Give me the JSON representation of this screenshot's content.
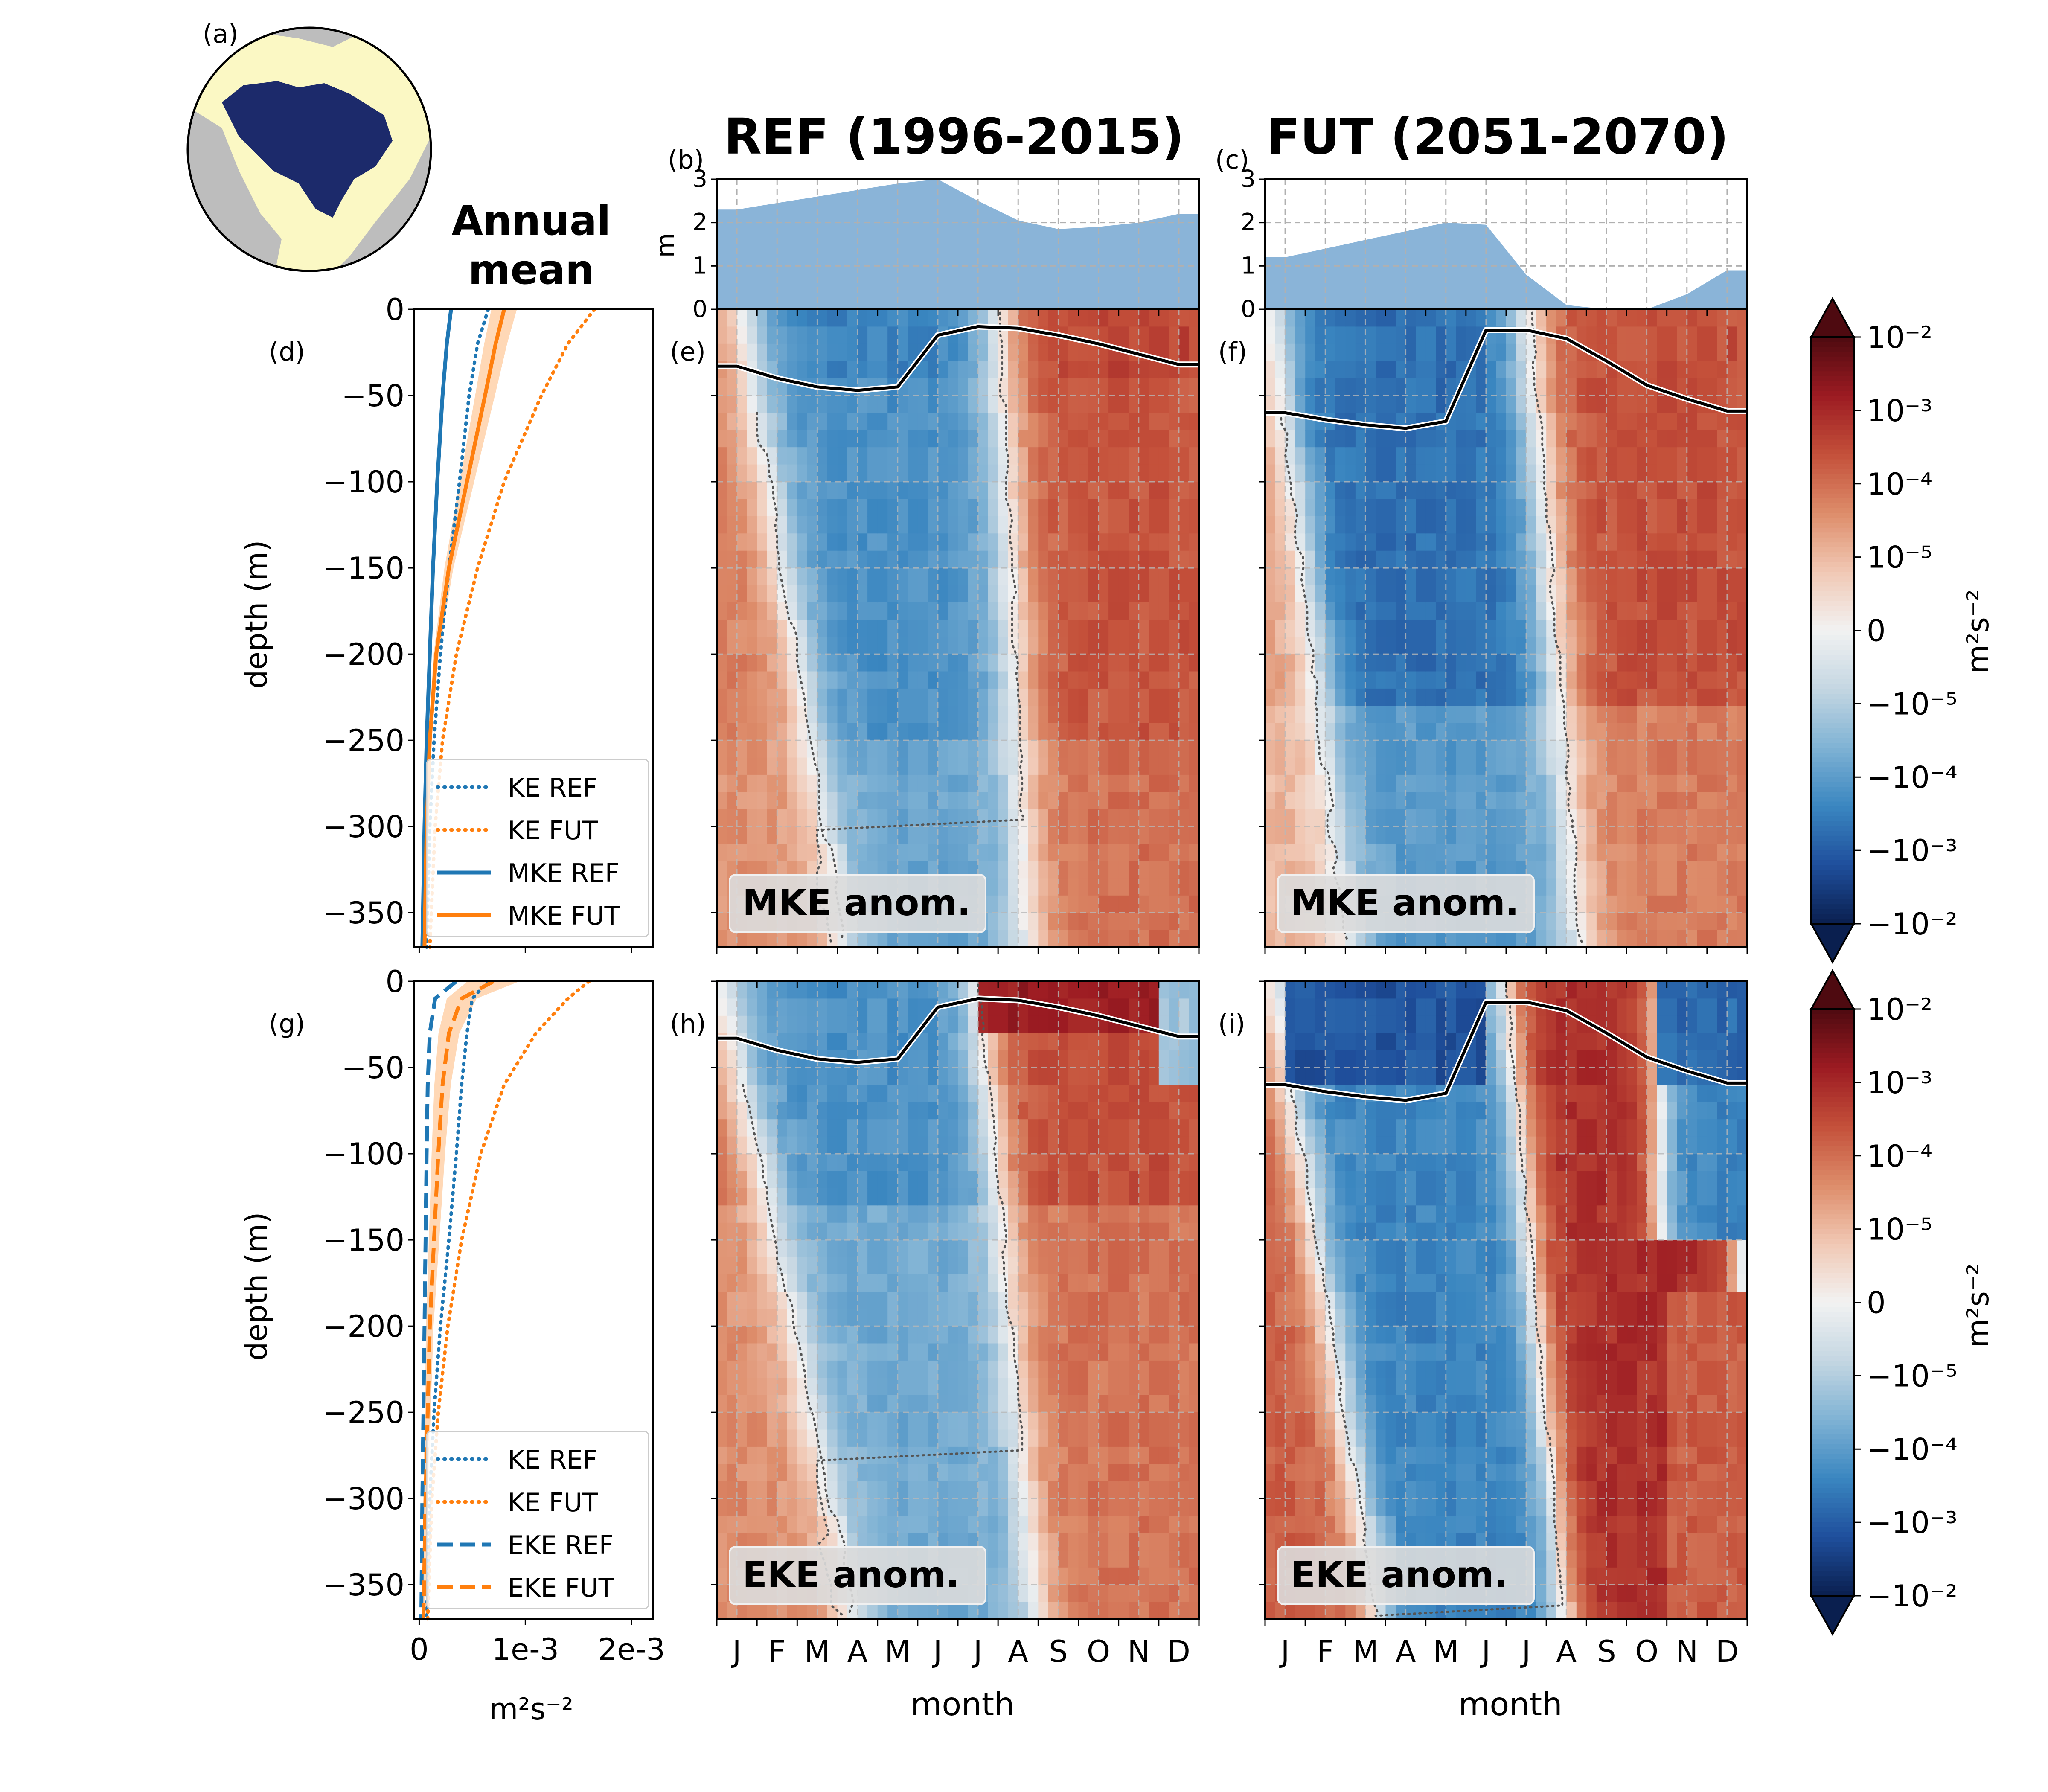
{
  "colors": {
    "blue": "#1f77b4",
    "orange": "#ff7f0e",
    "sea_ice": "#8ab4d8",
    "region": "#1c2a6b",
    "land": "#bdbdbd",
    "ocean_map": "#fbf8c4",
    "colormap": [
      "#0a1f4f",
      "#1f4f9c",
      "#3a86c0",
      "#7fb2d4",
      "#c4d6e2",
      "#f2f2f2",
      "#f1c8b4",
      "#dd8c6a",
      "#c4503a",
      "#9c1b22",
      "#4e0a10"
    ]
  },
  "texts": {
    "panel_a": "(a)",
    "panel_b": "(b)",
    "panel_c": "(c)",
    "panel_d": "(d)",
    "panel_e": "(e)",
    "panel_f": "(f)",
    "panel_g": "(g)",
    "panel_h": "(h)",
    "panel_i": "(i)",
    "title_ref": "REF (1996-2015)",
    "title_fut": "FUT (2051-2070)",
    "annual_mean_1": "Annual",
    "annual_mean_2": "mean",
    "ice_ylabel": "m",
    "depth_label": "depth (m)",
    "month_label": "month",
    "units_x": "m²s⁻²",
    "cbar_label": "m²s⁻²",
    "mke_anom": "MKE anom.",
    "eke_anom": "EKE anom."
  },
  "chart_data": [
    {
      "type": "area",
      "panel": "(b)",
      "title": "REF (1996-2015)",
      "ylabel": "m",
      "x": [
        "J",
        "F",
        "M",
        "A",
        "M",
        "J",
        "J",
        "A",
        "S",
        "O",
        "N",
        "D"
      ],
      "x_range": [
        0.5,
        12.5
      ],
      "ylim": [
        0,
        3
      ],
      "yticks": [
        0,
        1,
        2,
        3
      ],
      "values": [
        2.3,
        2.45,
        2.6,
        2.75,
        2.9,
        3.0,
        2.5,
        2.05,
        1.85,
        1.9,
        2.0,
        2.2
      ],
      "grid": true
    },
    {
      "type": "area",
      "panel": "(c)",
      "title": "FUT (2051-2070)",
      "x": [
        "J",
        "F",
        "M",
        "A",
        "M",
        "J",
        "J",
        "A",
        "S",
        "O",
        "N",
        "D"
      ],
      "x_range": [
        0.5,
        12.5
      ],
      "ylim": [
        0,
        3
      ],
      "yticks": [
        0,
        1,
        2,
        3
      ],
      "values": [
        1.2,
        1.4,
        1.6,
        1.8,
        2.0,
        1.95,
        0.8,
        0.1,
        0.0,
        0.0,
        0.35,
        0.9
      ],
      "grid": true
    },
    {
      "type": "line",
      "panel": "(d)",
      "xlabel": "m²s⁻²",
      "ylabel": "depth (m)",
      "xlim": [
        -5e-05,
        0.0022
      ],
      "ylim": [
        -370,
        0
      ],
      "xtick_labels": [
        "0",
        "1e-3",
        "2e-3"
      ],
      "xtick_values": [
        0,
        0.001,
        0.002
      ],
      "yticks": [
        0,
        -50,
        -100,
        -150,
        -200,
        -250,
        -300,
        -350
      ],
      "legend": "lower center",
      "depth": [
        0,
        -20,
        -50,
        -100,
        -150,
        -200,
        -250,
        -300,
        -370
      ],
      "series": [
        {
          "name": "KE REF",
          "style": "dotted",
          "color": "blue",
          "values": [
            0.00065,
            0.00055,
            0.00047,
            0.00038,
            0.00028,
            0.0002,
            0.00014,
            0.0001,
            7e-05
          ]
        },
        {
          "name": "KE FUT",
          "style": "dotted",
          "color": "orange",
          "values": [
            0.00165,
            0.0014,
            0.00115,
            0.0008,
            0.00055,
            0.00035,
            0.00022,
            0.00015,
            0.0001
          ]
        },
        {
          "name": "MKE REF",
          "style": "solid",
          "color": "blue",
          "values": [
            0.0003,
            0.00026,
            0.00022,
            0.00017,
            0.00013,
            0.0001,
            7e-05,
            5e-05,
            3e-05
          ]
        },
        {
          "name": "MKE FUT",
          "style": "solid",
          "color": "orange",
          "values": [
            0.0008,
            0.00072,
            0.00062,
            0.00045,
            0.00028,
            0.00016,
            0.0001,
            7e-05,
            5e-05
          ]
        }
      ]
    },
    {
      "type": "heatmap",
      "panel": "(e)",
      "label": "MKE anom.",
      "x": [
        "J",
        "F",
        "M",
        "A",
        "M",
        "J",
        "J",
        "A",
        "S",
        "O",
        "N",
        "D"
      ],
      "ylim": [
        -370,
        0
      ],
      "mixed_layer_depth": [
        -33,
        -40,
        -45,
        -47,
        -45,
        -15,
        -10,
        -11,
        -15,
        -20,
        -26,
        -32
      ],
      "zero_contour_month_near_surface": 7.5
    },
    {
      "type": "heatmap",
      "panel": "(f)",
      "label": "MKE anom.",
      "x": [
        "J",
        "F",
        "M",
        "A",
        "M",
        "J",
        "J",
        "A",
        "S",
        "O",
        "N",
        "D"
      ],
      "ylim": [
        -370,
        0
      ],
      "mixed_layer_depth": [
        -60,
        -64,
        -67,
        -69,
        -65,
        -12,
        -12,
        -17,
        -30,
        -44,
        -52,
        -59
      ]
    },
    {
      "type": "line",
      "panel": "(g)",
      "xlabel": "m²s⁻²",
      "ylabel": "depth (m)",
      "xlim": [
        -5e-05,
        0.0022
      ],
      "ylim": [
        -370,
        0
      ],
      "xtick_labels": [
        "0",
        "1e-3",
        "2e-3"
      ],
      "xtick_values": [
        0,
        0.001,
        0.002
      ],
      "yticks": [
        0,
        -50,
        -100,
        -150,
        -200,
        -250,
        -300,
        -350
      ],
      "legend": "lower center",
      "depth": [
        0,
        -10,
        -30,
        -60,
        -100,
        -150,
        -200,
        -250,
        -300,
        -370
      ],
      "series": [
        {
          "name": "KE REF",
          "style": "dotted",
          "color": "blue",
          "values": [
            0.00065,
            0.0005,
            0.00045,
            0.0004,
            0.00035,
            0.00028,
            0.0002,
            0.00014,
            0.0001,
            7e-05
          ]
        },
        {
          "name": "KE FUT",
          "style": "dotted",
          "color": "orange",
          "values": [
            0.0016,
            0.0014,
            0.0011,
            0.0008,
            0.00058,
            0.0004,
            0.00027,
            0.00018,
            0.00012,
            8e-05
          ]
        },
        {
          "name": "EKE REF",
          "style": "dashed",
          "color": "blue",
          "values": [
            0.00035,
            0.00015,
            0.0001,
            8e-05,
            7e-05,
            6e-05,
            5e-05,
            4e-05,
            3e-05,
            2e-05
          ]
        },
        {
          "name": "EKE FUT",
          "style": "dashed",
          "color": "orange",
          "values": [
            0.0007,
            0.0004,
            0.00028,
            0.00022,
            0.00018,
            0.00014,
            0.0001,
            8e-05,
            6e-05,
            4e-05
          ]
        }
      ]
    },
    {
      "type": "heatmap",
      "panel": "(h)",
      "label": "EKE anom.",
      "x": [
        "J",
        "F",
        "M",
        "A",
        "M",
        "J",
        "J",
        "A",
        "S",
        "O",
        "N",
        "D"
      ],
      "ylim": [
        -370,
        0
      ],
      "mixed_layer_depth": [
        -33,
        -40,
        -45,
        -47,
        -45,
        -15,
        -10,
        -11,
        -15,
        -20,
        -26,
        -32
      ]
    },
    {
      "type": "heatmap",
      "panel": "(i)",
      "label": "EKE anom.",
      "x": [
        "J",
        "F",
        "M",
        "A",
        "M",
        "J",
        "J",
        "A",
        "S",
        "O",
        "N",
        "D"
      ],
      "ylim": [
        -370,
        0
      ],
      "mixed_layer_depth": [
        -60,
        -64,
        -67,
        -69,
        -65,
        -12,
        -12,
        -17,
        -30,
        -44,
        -52,
        -59
      ]
    },
    {
      "type": "colorbar",
      "label": "m²s⁻²",
      "ticks": [
        "10⁻²",
        "10⁻³",
        "10⁻⁴",
        "10⁻⁵",
        "0",
        "−10⁻⁵",
        "−10⁻⁴",
        "−10⁻³",
        "−10⁻²"
      ],
      "extend": "both"
    }
  ]
}
